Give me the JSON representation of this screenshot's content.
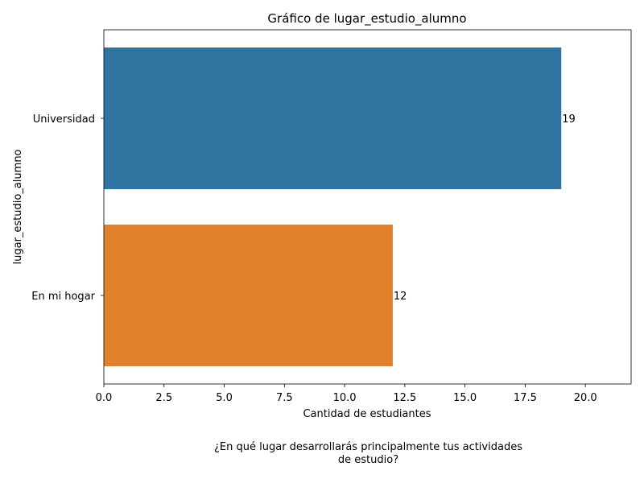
{
  "chart_data": {
    "type": "bar",
    "orientation": "horizontal",
    "title": "Gráfico de lugar_estudio_alumno",
    "xlabel": "Cantidad de estudiantes",
    "ylabel": "lugar_estudio_alumno",
    "categories": [
      "Universidad",
      "En mi hogar"
    ],
    "values": [
      19,
      12
    ],
    "data_labels": [
      "19",
      "12"
    ],
    "colors": [
      "#3274a1",
      "#e1812c"
    ],
    "xlim": [
      0,
      21.9
    ],
    "xticks": [
      "0.0",
      "2.5",
      "5.0",
      "7.5",
      "10.0",
      "12.5",
      "15.0",
      "17.5",
      "20.0"
    ],
    "grid": false,
    "legend": "none"
  },
  "caption": {
    "line1": "¿En qué lugar desarrollarás principalmente tus actividades",
    "line2": "de estudio?"
  }
}
